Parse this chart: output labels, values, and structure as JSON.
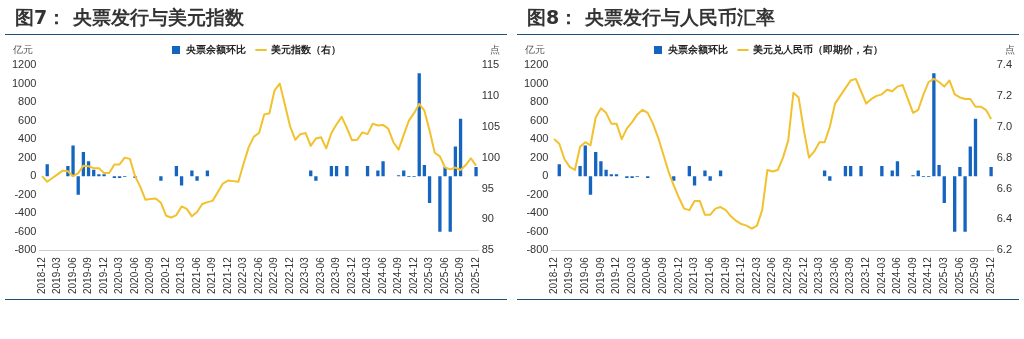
{
  "chart_data": [
    {
      "type": "bar",
      "title": "图7： 央票发行与美元指数",
      "ylabel": "亿元",
      "y2label": "点",
      "legend": "top",
      "grid": false,
      "categories": [
        "2018-12",
        null,
        null,
        "2019-03",
        null,
        null,
        "2019-06",
        null,
        null,
        "2019-09",
        null,
        null,
        "2019-12",
        null,
        null,
        "2020-03",
        null,
        null,
        "2020-06",
        null,
        null,
        "2020-09",
        null,
        null,
        "2020-12",
        null,
        null,
        "2021-03",
        null,
        null,
        "2021-06",
        null,
        null,
        "2021-09",
        null,
        null,
        "2021-12",
        null,
        null,
        "2022-03",
        null,
        null,
        "2022-06",
        null,
        null,
        "2022-09",
        null,
        null,
        "2022-12",
        null,
        null,
        "2023-03",
        null,
        null,
        "2023-06",
        null,
        null,
        "2023-09",
        null,
        null,
        "2023-12",
        null,
        null,
        "2024-03",
        null,
        null,
        "2024-06",
        null,
        null,
        "2024-09",
        null,
        null,
        "2024-12",
        null,
        null,
        "2025-03",
        null,
        null,
        "2025-06",
        null,
        null,
        "2025-09",
        null,
        null,
        "2025-12"
      ],
      "ylim": [
        -800,
        1200
      ],
      "yticks": [
        -800,
        -600,
        -400,
        -200,
        0,
        200,
        400,
        600,
        800,
        1000,
        1200
      ],
      "y2lim": [
        85,
        115
      ],
      "y2ticks": [
        85,
        90,
        95,
        100,
        105,
        110,
        115
      ],
      "series": [
        {
          "name": "央票余额环比",
          "color": "#1565c0",
          "values": [
            null,
            130,
            null,
            null,
            null,
            110,
            330,
            -200,
            260,
            160,
            70,
            20,
            20,
            null,
            -20,
            -20,
            -10,
            null,
            -20,
            null,
            null,
            null,
            null,
            -50,
            null,
            null,
            110,
            -100,
            null,
            60,
            -50,
            null,
            60,
            null,
            null,
            null,
            null,
            null,
            null,
            null,
            null,
            null,
            null,
            null,
            null,
            null,
            null,
            null,
            null,
            null,
            null,
            null,
            60,
            -50,
            null,
            null,
            110,
            110,
            null,
            110,
            null,
            null,
            null,
            110,
            null,
            60,
            160,
            null,
            null,
            10,
            60,
            -10,
            -10,
            1110,
            120,
            -290,
            null,
            -600,
            100,
            -600,
            320,
            620,
            null,
            null,
            100
          ]
        },
        {
          "name": "美元指数（右）",
          "type": "line",
          "axis": "y2",
          "color": "#f2c12e",
          "values": [
            97.0,
            96.1,
            96.7,
            97.3,
            97.9,
            97.8,
            97.0,
            97.5,
            98.7,
            98.6,
            98.3,
            98.3,
            97.5,
            97.5,
            98.9,
            98.9,
            100.0,
            99.8,
            97.0,
            95.3,
            93.2,
            93.3,
            93.4,
            92.7,
            90.6,
            90.3,
            90.7,
            92.1,
            91.7,
            90.5,
            91.2,
            92.5,
            92.8,
            93.0,
            94.4,
            95.8,
            96.3,
            96.2,
            96.1,
            99.0,
            101.7,
            103.4,
            104.0,
            107.0,
            107.2,
            110.9,
            112.0,
            108.6,
            105.1,
            102.9,
            103.8,
            104.0,
            101.9,
            103.1,
            103.3,
            101.5,
            104.0,
            105.4,
            106.6,
            104.8,
            102.8,
            102.9,
            104.1,
            103.8,
            105.5,
            105.2,
            105.3,
            104.7,
            102.5,
            101.3,
            103.7,
            106.0,
            107.2,
            108.7,
            107.6,
            104.4,
            100.8,
            100.2,
            98.4,
            98.1,
            98.4,
            98.0,
            98.8,
            99.9,
            98.7
          ]
        }
      ]
    },
    {
      "type": "bar",
      "title": "图8： 央票发行与人民币汇率",
      "ylabel": "亿元",
      "y2label": "点",
      "legend": "top",
      "grid": false,
      "categories": [
        "2018-12",
        null,
        null,
        "2019-03",
        null,
        null,
        "2019-06",
        null,
        null,
        "2019-09",
        null,
        null,
        "2019-12",
        null,
        null,
        "2020-03",
        null,
        null,
        "2020-06",
        null,
        null,
        "2020-09",
        null,
        null,
        "2020-12",
        null,
        null,
        "2021-03",
        null,
        null,
        "2021-06",
        null,
        null,
        "2021-09",
        null,
        null,
        "2021-12",
        null,
        null,
        "2022-03",
        null,
        null,
        "2022-06",
        null,
        null,
        "2022-09",
        null,
        null,
        "2022-12",
        null,
        null,
        "2023-03",
        null,
        null,
        "2023-06",
        null,
        null,
        "2023-09",
        null,
        null,
        "2023-12",
        null,
        null,
        "2024-03",
        null,
        null,
        "2024-06",
        null,
        null,
        "2024-09",
        null,
        null,
        "2024-12",
        null,
        null,
        "2025-03",
        null,
        null,
        "2025-06",
        null,
        null,
        "2025-09",
        null,
        null,
        "2025-12"
      ],
      "ylim": [
        -800,
        1200
      ],
      "yticks": [
        -800,
        -600,
        -400,
        -200,
        0,
        200,
        400,
        600,
        800,
        1000,
        1200
      ],
      "y2lim": [
        6.2,
        7.4
      ],
      "y2ticks": [
        6.2,
        6.4,
        6.6,
        6.8,
        {
          "value": 7,
          "label": "7.0"
        },
        7.2,
        7.4
      ],
      "series": [
        {
          "name": "央票余额环比",
          "color": "#1565c0",
          "values": [
            null,
            130,
            null,
            null,
            null,
            110,
            330,
            -200,
            260,
            160,
            70,
            20,
            20,
            null,
            -20,
            -20,
            -10,
            null,
            -20,
            null,
            null,
            null,
            null,
            -50,
            null,
            null,
            110,
            -100,
            null,
            60,
            -50,
            null,
            60,
            null,
            null,
            null,
            null,
            null,
            null,
            null,
            null,
            null,
            null,
            null,
            null,
            null,
            null,
            null,
            null,
            null,
            null,
            null,
            60,
            -50,
            null,
            null,
            110,
            110,
            null,
            110,
            null,
            null,
            null,
            110,
            null,
            60,
            160,
            null,
            null,
            10,
            60,
            -10,
            -10,
            1110,
            120,
            -290,
            null,
            -600,
            100,
            -600,
            320,
            620,
            null,
            null,
            100
          ]
        },
        {
          "name": "美元兑人民币（即期价，右）",
          "type": "line",
          "axis": "y2",
          "color": "#f2c12e",
          "values": [
            6.92,
            6.89,
            6.79,
            6.74,
            6.72,
            6.87,
            6.9,
            6.88,
            7.06,
            7.12,
            7.09,
            7.02,
            7.02,
            6.92,
            6.99,
            7.03,
            7.08,
            7.11,
            7.09,
            7.02,
            6.93,
            6.82,
            6.71,
            6.62,
            6.54,
            6.47,
            6.46,
            6.52,
            6.52,
            6.43,
            6.43,
            6.47,
            6.48,
            6.46,
            6.42,
            6.39,
            6.37,
            6.36,
            6.34,
            6.36,
            6.46,
            6.72,
            6.71,
            6.72,
            6.8,
            6.91,
            7.22,
            7.19,
            6.98,
            6.8,
            6.84,
            6.9,
            6.9,
            7.0,
            7.15,
            7.2,
            7.25,
            7.3,
            7.31,
            7.23,
            7.15,
            7.18,
            7.2,
            7.21,
            7.24,
            7.23,
            7.26,
            7.27,
            7.18,
            7.09,
            7.11,
            7.21,
            7.29,
            7.31,
            7.29,
            7.26,
            7.3,
            7.21,
            7.19,
            7.18,
            7.18,
            7.13,
            7.13,
            7.11,
            7.05
          ]
        }
      ]
    }
  ]
}
